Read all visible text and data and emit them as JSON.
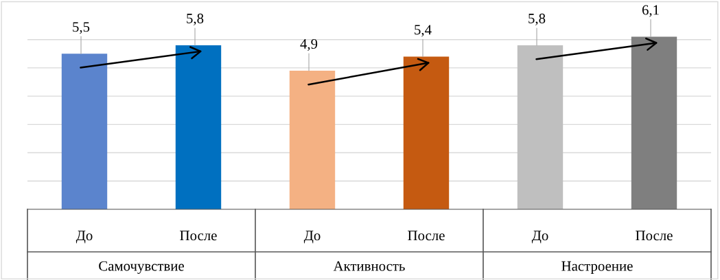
{
  "chart_data": {
    "type": "bar",
    "categories": [
      "До",
      "После",
      "До",
      "После",
      "До",
      "После"
    ],
    "values": [
      5.5,
      5.8,
      4.9,
      5.4,
      5.8,
      6.1
    ],
    "colors": [
      "#5b84cd",
      "#0070c0",
      "#f4b183",
      "#c55a11",
      "#bfbfbf",
      "#7f7f7f"
    ],
    "annotations": [
      "Самочувствие",
      "Активность",
      "Настроение"
    ],
    "value_labels": [
      "5,5",
      "5,8",
      "4,9",
      "5,4",
      "5,8",
      "6,1"
    ],
    "grid": "y"
  }
}
